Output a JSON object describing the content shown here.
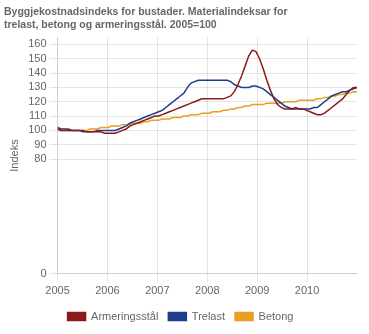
{
  "chart_data": {
    "type": "line",
    "title": "Byggjekostnadsindeks for bustader. Materialindeksar for\ntrelast, betong og armeringsstål. 2005=100",
    "ylabel": "Indeks",
    "x": [
      2005,
      2005.0723,
      2005.1446,
      2005.2169,
      2005.2892,
      2005.3614,
      2005.4337,
      2005.506,
      2005.5783,
      2005.6506,
      2005.7229,
      2005.7952,
      2005.8675,
      2005.9398,
      2006.012,
      2006.0843,
      2006.1566,
      2006.2289,
      2006.3012,
      2006.3735,
      2006.4458,
      2006.5181,
      2006.5904,
      2006.6627,
      2006.7349,
      2006.8072,
      2006.8795,
      2006.9518,
      2007.0241,
      2007.0964,
      2007.1687,
      2007.241,
      2007.3133,
      2007.3855,
      2007.4578,
      2007.5301,
      2007.6024,
      2007.6747,
      2007.747,
      2007.8193,
      2007.8916,
      2007.9639,
      2008.0361,
      2008.1084,
      2008.1807,
      2008.253,
      2008.3253,
      2008.3976,
      2008.4699,
      2008.5422,
      2008.6145,
      2008.6867,
      2008.759,
      2008.8313,
      2008.9036,
      2008.9759,
      2009.0482,
      2009.1205,
      2009.1928,
      2009.2651,
      2009.3373,
      2009.4096,
      2009.4819,
      2009.5542,
      2009.6265,
      2009.6988,
      2009.7711,
      2009.8434,
      2009.9157,
      2009.988,
      2010.0602,
      2010.1325,
      2010.2048,
      2010.2771,
      2010.3494,
      2010.4217,
      2010.494,
      2010.5663,
      2010.6386,
      2010.7108,
      2010.7831,
      2010.8554,
      2010.9277,
      2011
    ],
    "series": [
      {
        "name": "Armeringsstål",
        "color": "#8b1a1a",
        "values": [
          102,
          101,
          101,
          101,
          100,
          100,
          100,
          100,
          99,
          99,
          99,
          99,
          99,
          98,
          98,
          98,
          98,
          99,
          100,
          101,
          103,
          104,
          105,
          106,
          107,
          108,
          109,
          110,
          110,
          111,
          112,
          113,
          114,
          115,
          116,
          117,
          118,
          119,
          120,
          121,
          122,
          122,
          122,
          122,
          122,
          122,
          122,
          123,
          124,
          127,
          132,
          138,
          145,
          152,
          156,
          155,
          150,
          143,
          135,
          128,
          122,
          118,
          116,
          115,
          115,
          115,
          116,
          115,
          115,
          114,
          113,
          112,
          111,
          111,
          112,
          114,
          116,
          118,
          120,
          122,
          125,
          128,
          130,
          130
        ]
      },
      {
        "name": "Trelast",
        "color": "#1f3d8c",
        "values": [
          101,
          100,
          100,
          100,
          100,
          100,
          100,
          99,
          99,
          99,
          99,
          100,
          100,
          100,
          100,
          100,
          100,
          101,
          102,
          103,
          105,
          106,
          107,
          108,
          109,
          110,
          111,
          112,
          113,
          114,
          116,
          118,
          120,
          122,
          124,
          126,
          130,
          133,
          134,
          135,
          135,
          135,
          135,
          135,
          135,
          135,
          135,
          135,
          134,
          132,
          131,
          130,
          130,
          130,
          131,
          131,
          130,
          129,
          127,
          125,
          123,
          121,
          119,
          117,
          116,
          115,
          115,
          115,
          115,
          115,
          115,
          116,
          116,
          118,
          120,
          122,
          124,
          125,
          126,
          127,
          127,
          128,
          129,
          130
        ]
      },
      {
        "name": "Betong",
        "color": "#e8a020",
        "values": [
          100,
          100,
          100,
          100,
          100,
          100,
          100,
          100,
          100,
          101,
          101,
          101,
          102,
          102,
          102,
          103,
          103,
          103,
          104,
          104,
          104,
          105,
          105,
          105,
          106,
          106,
          107,
          107,
          107,
          108,
          108,
          108,
          109,
          109,
          109,
          110,
          110,
          111,
          111,
          111,
          112,
          112,
          112,
          113,
          113,
          113,
          114,
          114,
          115,
          115,
          116,
          116,
          117,
          117,
          118,
          118,
          118,
          118,
          119,
          119,
          119,
          119,
          119,
          120,
          120,
          120,
          120,
          121,
          121,
          121,
          121,
          121,
          122,
          122,
          123,
          123,
          124,
          124,
          125,
          125,
          126,
          126,
          127,
          127
        ]
      }
    ],
    "xlim": [
      2005,
      2011
    ],
    "xticks": [
      2005,
      2006,
      2007,
      2008,
      2009,
      2010
    ],
    "ylim": [
      0,
      165
    ],
    "yticks": [
      0,
      80,
      90,
      100,
      110,
      120,
      130,
      140,
      150,
      160
    ],
    "grid": true,
    "legend": "bottom"
  }
}
